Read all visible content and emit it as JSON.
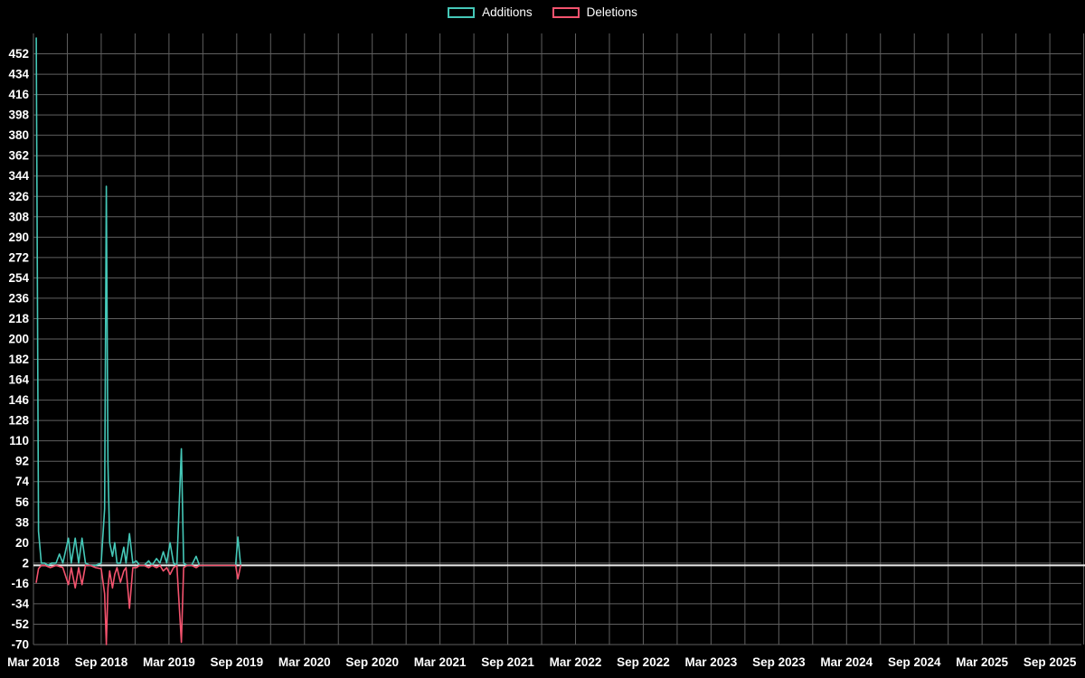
{
  "legend": {
    "items": [
      {
        "label": "Additions",
        "color": "#45c8b8"
      },
      {
        "label": "Deletions",
        "color": "#f4536e"
      }
    ]
  },
  "chart_data": {
    "type": "line",
    "title": "",
    "background": "#000000",
    "grid_color": "#5f5f5f",
    "zero_line_color": "#e8e8e8",
    "text_color": "#ffffff",
    "x_axis": {
      "unit": "months_since_Mar_2018",
      "tick_labels": [
        "Mar 2018",
        "Sep 2018",
        "Mar 2019",
        "Sep 2019",
        "Mar 2020",
        "Sep 2020",
        "Mar 2021",
        "Sep 2021",
        "Mar 2022",
        "Sep 2022",
        "Mar 2023",
        "Sep 2023",
        "Mar 2024",
        "Sep 2024",
        "Mar 2025",
        "Sep 2025"
      ],
      "months_per_label": 6,
      "gridline_every_months": 3,
      "total_months": 93
    },
    "y_axis": {
      "min": -70,
      "max": 452,
      "ticks": [
        452,
        434,
        416,
        398,
        380,
        362,
        344,
        326,
        308,
        290,
        272,
        254,
        236,
        218,
        200,
        182,
        164,
        146,
        128,
        110,
        92,
        74,
        56,
        38,
        20,
        2,
        -16,
        -34,
        -52,
        -70
      ]
    },
    "series": [
      {
        "name": "Additions",
        "color": "#45c8b8",
        "points": [
          [
            0.25,
            466
          ],
          [
            0.45,
            30
          ],
          [
            0.7,
            2
          ],
          [
            1.0,
            2
          ],
          [
            1.3,
            0
          ],
          [
            1.6,
            2
          ],
          [
            2.0,
            2
          ],
          [
            2.3,
            10
          ],
          [
            2.6,
            2
          ],
          [
            3.1,
            24
          ],
          [
            3.35,
            2
          ],
          [
            3.7,
            24
          ],
          [
            4.0,
            2
          ],
          [
            4.3,
            24
          ],
          [
            4.6,
            2
          ],
          [
            5.0,
            0
          ],
          [
            5.5,
            0
          ],
          [
            6.0,
            2
          ],
          [
            6.3,
            50
          ],
          [
            6.45,
            335
          ],
          [
            6.6,
            90
          ],
          [
            6.75,
            20
          ],
          [
            7.0,
            8
          ],
          [
            7.2,
            20
          ],
          [
            7.4,
            2
          ],
          [
            7.7,
            2
          ],
          [
            8.0,
            16
          ],
          [
            8.2,
            2
          ],
          [
            8.5,
            28
          ],
          [
            8.8,
            2
          ],
          [
            9.1,
            4
          ],
          [
            9.4,
            0
          ],
          [
            9.8,
            0
          ],
          [
            10.2,
            4
          ],
          [
            10.5,
            0
          ],
          [
            10.9,
            6
          ],
          [
            11.2,
            2
          ],
          [
            11.5,
            12
          ],
          [
            11.8,
            2
          ],
          [
            12.1,
            20
          ],
          [
            12.4,
            2
          ],
          [
            12.7,
            0
          ],
          [
            13.1,
            103
          ],
          [
            13.3,
            2
          ],
          [
            13.6,
            0
          ],
          [
            14.0,
            0
          ],
          [
            14.4,
            8
          ],
          [
            14.7,
            0
          ],
          [
            15.5,
            0
          ],
          [
            16.5,
            0
          ],
          [
            17.5,
            0
          ],
          [
            17.9,
            0
          ],
          [
            18.1,
            25
          ],
          [
            18.35,
            0
          ]
        ]
      },
      {
        "name": "Deletions",
        "color": "#f4536e",
        "points": [
          [
            0.25,
            -15
          ],
          [
            0.45,
            -3
          ],
          [
            0.7,
            0
          ],
          [
            1.0,
            0
          ],
          [
            1.5,
            -2
          ],
          [
            2.0,
            0
          ],
          [
            2.6,
            -2
          ],
          [
            3.1,
            -17
          ],
          [
            3.35,
            -2
          ],
          [
            3.7,
            -20
          ],
          [
            4.0,
            -2
          ],
          [
            4.3,
            -17
          ],
          [
            4.6,
            0
          ],
          [
            5.0,
            0
          ],
          [
            5.5,
            -2
          ],
          [
            6.0,
            -3
          ],
          [
            6.3,
            -25
          ],
          [
            6.45,
            -70
          ],
          [
            6.6,
            -20
          ],
          [
            6.75,
            -5
          ],
          [
            7.0,
            -20
          ],
          [
            7.2,
            -8
          ],
          [
            7.4,
            -2
          ],
          [
            7.7,
            -15
          ],
          [
            8.0,
            -5
          ],
          [
            8.2,
            -2
          ],
          [
            8.5,
            -38
          ],
          [
            8.8,
            -2
          ],
          [
            9.1,
            -2
          ],
          [
            9.4,
            0
          ],
          [
            9.8,
            0
          ],
          [
            10.2,
            -2
          ],
          [
            10.5,
            0
          ],
          [
            10.9,
            -2
          ],
          [
            11.2,
            0
          ],
          [
            11.5,
            -5
          ],
          [
            11.8,
            -2
          ],
          [
            12.1,
            -8
          ],
          [
            12.4,
            -2
          ],
          [
            12.7,
            0
          ],
          [
            13.1,
            -68
          ],
          [
            13.3,
            -2
          ],
          [
            13.6,
            0
          ],
          [
            14.0,
            0
          ],
          [
            14.4,
            -2
          ],
          [
            14.7,
            0
          ],
          [
            15.5,
            0
          ],
          [
            16.5,
            0
          ],
          [
            17.5,
            0
          ],
          [
            17.9,
            0
          ],
          [
            18.1,
            -12
          ],
          [
            18.35,
            0
          ]
        ]
      }
    ]
  }
}
